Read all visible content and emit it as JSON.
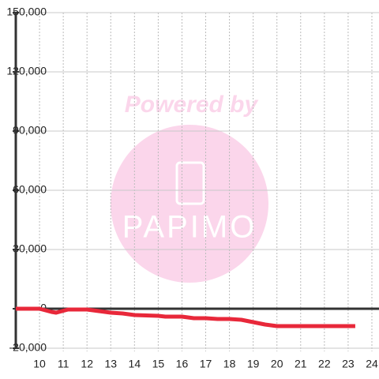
{
  "chart_data": {
    "type": "line",
    "watermark": {
      "top": "Powered by",
      "brand": "PAPIMO"
    },
    "x": [
      9,
      10,
      10.5,
      10.7,
      11.2,
      12,
      12.5,
      13,
      13.5,
      14,
      15,
      15.3,
      16,
      16.5,
      17,
      17.5,
      18,
      18.5,
      19,
      19.5,
      20,
      21,
      23.3
    ],
    "series": [
      {
        "color": "#e8283a",
        "values": [
          0,
          0,
          -1600,
          -2000,
          -400,
          -400,
          -1200,
          -2000,
          -2400,
          -3200,
          -3600,
          -4000,
          -4000,
          -4800,
          -4800,
          -5200,
          -5200,
          -5600,
          -6800,
          -8000,
          -8800,
          -8800,
          -8800
        ]
      }
    ],
    "xlim": [
      9,
      24.3
    ],
    "xticks": [
      10,
      11,
      12,
      13,
      14,
      15,
      16,
      17,
      18,
      19,
      20,
      21,
      22,
      23,
      24
    ],
    "ylim": [
      -20000,
      150000
    ],
    "yticks": [
      {
        "value": -20000,
        "label": "-20,000"
      },
      0,
      {
        "value": 30000,
        "label": "30,000"
      },
      {
        "value": 60000,
        "label": "60,000"
      },
      {
        "value": 90000,
        "label": "90,000"
      },
      {
        "value": 120000,
        "label": "120,000"
      },
      {
        "value": 150000,
        "label": "150,000"
      }
    ],
    "grid": true
  }
}
